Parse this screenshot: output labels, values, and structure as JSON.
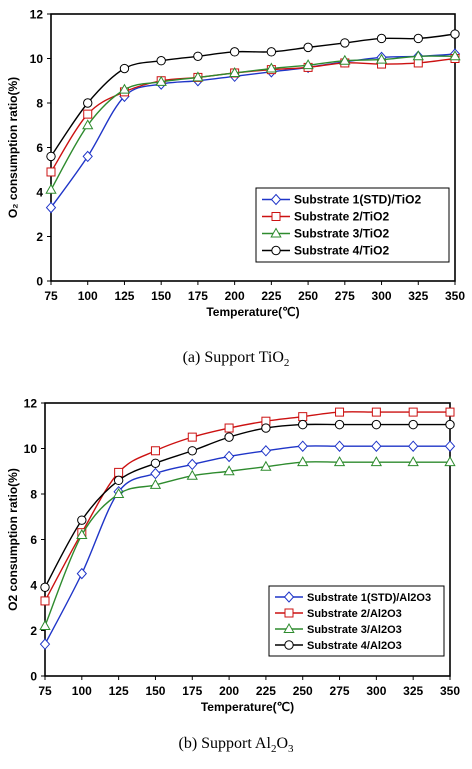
{
  "chart_data": [
    {
      "type": "line",
      "x": [
        75,
        100,
        125,
        150,
        175,
        200,
        225,
        250,
        275,
        300,
        325,
        350
      ],
      "xlabel": "Temperature(℃)",
      "ylabel": "O₂ consumption ratio(%)",
      "xlim": [
        75,
        350
      ],
      "ylim": [
        0,
        12
      ],
      "xticks": [
        "75",
        "100",
        "125",
        "150",
        "175",
        "200",
        "225",
        "250",
        "275",
        "300",
        "325",
        "350"
      ],
      "yticks": [
        "0",
        "2",
        "4",
        "6",
        "8",
        "10",
        "12"
      ],
      "grid": false,
      "legend_position": "bottom-right",
      "series": [
        {
          "name": "Substrate 1(STD)/TiO2",
          "color": "#1f35c8",
          "marker": "diamond",
          "values": [
            3.3,
            5.6,
            8.3,
            8.85,
            9.0,
            9.2,
            9.4,
            9.6,
            9.85,
            10.05,
            10.1,
            10.2
          ]
        },
        {
          "name": "Substrate  2/TiO2",
          "color": "#cc1111",
          "marker": "square",
          "values": [
            4.9,
            7.5,
            8.5,
            9.0,
            9.15,
            9.35,
            9.5,
            9.6,
            9.8,
            9.75,
            9.8,
            10.0
          ]
        },
        {
          "name": "Substrate  3/TiO2",
          "color": "#2e8b2e",
          "marker": "triangle",
          "values": [
            4.1,
            7.0,
            8.6,
            8.95,
            9.15,
            9.35,
            9.55,
            9.7,
            9.9,
            9.95,
            10.1,
            10.1
          ]
        },
        {
          "name": "Substrate 4/TiO2",
          "color": "#000000",
          "marker": "circle",
          "values": [
            5.6,
            8.0,
            9.55,
            9.9,
            10.1,
            10.3,
            10.3,
            10.5,
            10.7,
            10.9,
            10.9,
            11.1
          ]
        }
      ]
    },
    {
      "type": "line",
      "x": [
        75,
        100,
        125,
        150,
        175,
        200,
        225,
        250,
        275,
        300,
        325,
        350
      ],
      "xlabel": "Temperature(℃)",
      "ylabel": "O2 consumption ratio(%)",
      "xlim": [
        75,
        350
      ],
      "ylim": [
        0,
        12
      ],
      "xticks": [
        "75",
        "100",
        "125",
        "150",
        "175",
        "200",
        "225",
        "250",
        "275",
        "300",
        "325",
        "350"
      ],
      "yticks": [
        "0",
        "2",
        "4",
        "6",
        "8",
        "10",
        "12"
      ],
      "grid": false,
      "legend_position": "bottom-right",
      "series": [
        {
          "name": "Substrate 1(STD)/Al2O3",
          "color": "#1f35c8",
          "marker": "diamond",
          "values": [
            1.4,
            4.5,
            8.1,
            8.9,
            9.3,
            9.65,
            9.9,
            10.1,
            10.1,
            10.1,
            10.1,
            10.1
          ]
        },
        {
          "name": "Substrate  2/Al2O3",
          "color": "#cc1111",
          "marker": "square",
          "values": [
            3.3,
            6.3,
            8.95,
            9.9,
            10.5,
            10.9,
            11.2,
            11.4,
            11.6,
            11.6,
            11.6,
            11.6
          ]
        },
        {
          "name": "Substrate  3/Al2O3",
          "color": "#2e8b2e",
          "marker": "triangle",
          "values": [
            2.2,
            6.2,
            8.0,
            8.4,
            8.8,
            9.0,
            9.2,
            9.4,
            9.4,
            9.4,
            9.4,
            9.4
          ]
        },
        {
          "name": "Substrate 4/Al2O3",
          "color": "#000000",
          "marker": "circle",
          "values": [
            3.9,
            6.85,
            8.6,
            9.35,
            9.9,
            10.5,
            10.9,
            11.05,
            11.05,
            11.05,
            11.05,
            11.05
          ]
        }
      ]
    }
  ],
  "captions": {
    "a": {
      "prefix": "(a)  Support  TiO",
      "sub": "2",
      "suffix": ""
    },
    "b": {
      "prefix": "(b)  Support  Al",
      "sub1": "2",
      "mid": "O",
      "sub2": "3"
    }
  }
}
